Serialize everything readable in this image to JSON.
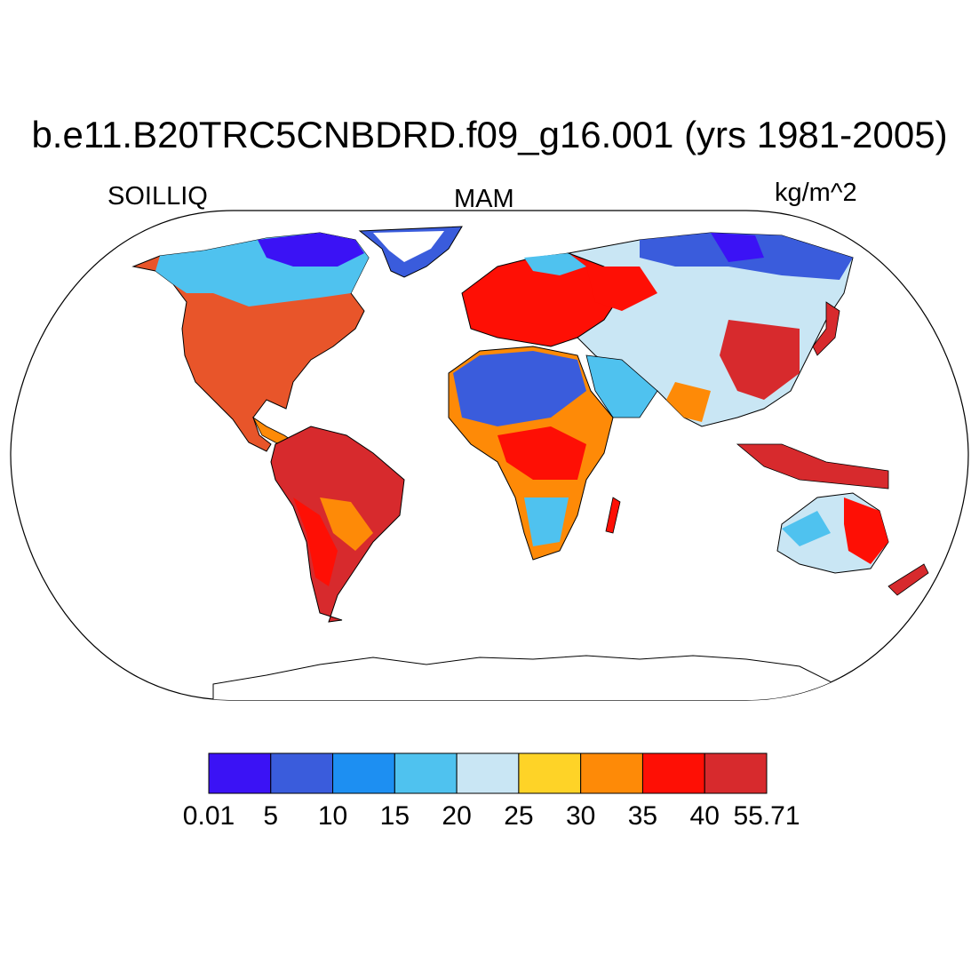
{
  "title": "b.e11.B20TRC5CNBDRD.f09_g16.001 (yrs 1981-2005)",
  "left_label": "SOILLIQ",
  "center_label": "MAM",
  "right_label": "kg/m^2",
  "colorbar": {
    "labels": [
      "0.01",
      "5",
      "10",
      "15",
      "20",
      "25",
      "30",
      "35",
      "40",
      "55.71"
    ],
    "colors": [
      "#3b12f5",
      "#3a5cdc",
      "#1d8ff2",
      "#4fc2ef",
      "#c9e6f4",
      "#fed327",
      "#fe8a07",
      "#fe0f05",
      "#d72a2d"
    ]
  },
  "map": {
    "projection": "Robinson",
    "variable": "SOILLIQ",
    "season": "MAM",
    "units": "kg/m^2",
    "ocean_color": "#ffffff",
    "coastline_color": "#000000"
  }
}
